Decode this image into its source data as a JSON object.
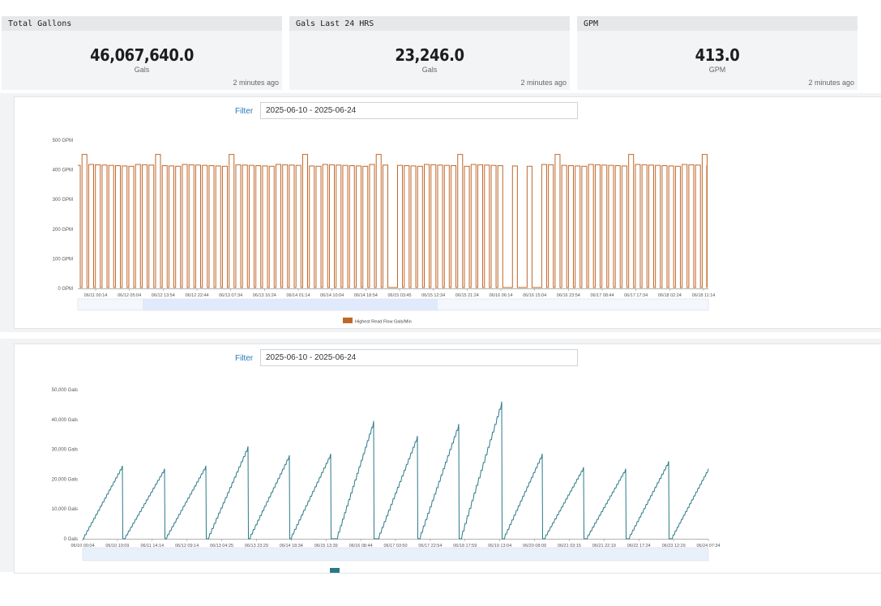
{
  "cards": [
    {
      "title": "Total Gallons",
      "value": "46,067,640.0",
      "unit": "Gals",
      "age": "2 minutes ago"
    },
    {
      "title": "Gals Last 24 HRS",
      "value": "23,246.0",
      "unit": "Gals",
      "age": "2 minutes ago"
    },
    {
      "title": "GPM",
      "value": "413.0",
      "unit": "GPM",
      "age": "2 minutes ago"
    }
  ],
  "flow_panel": {
    "filter_label": "Filter",
    "filter_value": "2025-06-10 - 2025-06-24"
  },
  "total_panel": {
    "filter_label": "Filter",
    "filter_value": "2025-06-10 - 2025-06-24"
  },
  "colors": {
    "flow": "#c0672a",
    "total": "#2a7a86"
  },
  "chart_data": [
    {
      "type": "line",
      "ytick_labels": [
        "0 GPM",
        "100 GPM",
        "200 GPM",
        "300 GPM",
        "400 GPM",
        "500 GPM"
      ],
      "ylim": [
        0,
        500
      ],
      "xtick_labels": [
        "06/11 00:14",
        "06/12 05:04",
        "06/12 13:54",
        "06/12 22:44",
        "06/13 07:34",
        "06/13 16:24",
        "06/14 01:14",
        "06/14 10:04",
        "06/14 18:54",
        "06/15 03:45",
        "06/15 12:34",
        "06/15 21:24",
        "06/16 06:14",
        "06/16 15:04",
        "06/16 23:54",
        "06/17 08:44",
        "06/17 17:34",
        "06/18 02:24",
        "06/18 11:14"
      ],
      "series": [
        {
          "name": "Highest Read Flow Gals/Min",
          "typical_on_value": 415,
          "off_value": 3
        }
      ],
      "legend": "bottom",
      "grid": false
    },
    {
      "type": "line",
      "ytick_labels": [
        "0 Gals",
        "10,000 Gals",
        "20,000 Gals",
        "30,000 Gals",
        "40,000 Gals",
        "50,000 Gals"
      ],
      "ylim": [
        0,
        50000
      ],
      "xtick_labels": [
        "06/10 00:04",
        "06/10 19:09",
        "06/11 14:14",
        "06/12 09:14",
        "06/13 04:25",
        "06/13 23:29",
        "06/14 18:34",
        "06/15 13:39",
        "06/16 08:44",
        "06/17 03:50",
        "06/17 22:54",
        "06/18 17:59",
        "06/19 13:04",
        "06/20 08:09",
        "06/21 03:15",
        "06/21 22:19",
        "06/22 17:24",
        "06/23 12:29",
        "06/24 07:34"
      ],
      "series": [
        {
          "name": "",
          "peaks": [
            24500,
            23500,
            24500,
            31000,
            28000,
            28500,
            39500,
            34500,
            38500,
            46000,
            28500,
            24000,
            23500,
            26000,
            23500
          ]
        }
      ],
      "legend": "bottom",
      "grid": false
    }
  ]
}
